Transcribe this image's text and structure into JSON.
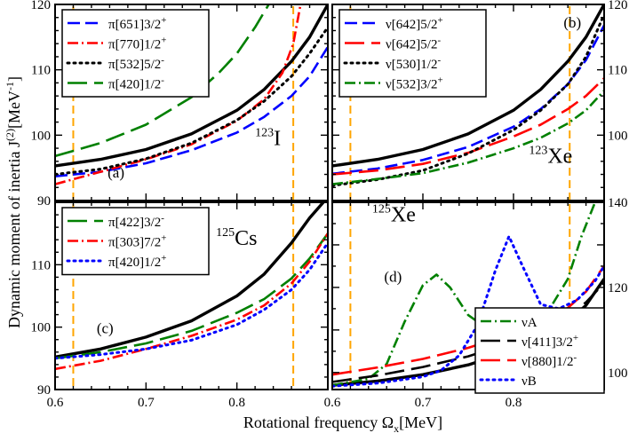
{
  "chart_data": [
    {
      "type": "line",
      "panel": "(a)",
      "nucleus": {
        "mass": "123",
        "symbol": "I"
      },
      "xlim": [
        0.6,
        0.9
      ],
      "ylim": [
        90,
        120
      ],
      "yticks": [
        90,
        100,
        110,
        120
      ],
      "ytick_side": "left",
      "xticks": [],
      "vlines": [
        0.62,
        0.862
      ],
      "legend_position": "top-left",
      "series": [
        {
          "name": "solid",
          "label": "",
          "color": "#000000",
          "dash": "solid",
          "x": [
            0.6,
            0.65,
            0.7,
            0.75,
            0.8,
            0.83,
            0.86,
            0.88,
            0.9
          ],
          "y": [
            95.3,
            96.3,
            97.8,
            100.2,
            103.8,
            107.0,
            111.3,
            115.0,
            120.0
          ]
        },
        {
          "name": "pi651",
          "label": "π[651]3/2⁺",
          "color": "#0000ff",
          "dash": "dash",
          "x": [
            0.6,
            0.65,
            0.7,
            0.75,
            0.8,
            0.83,
            0.86,
            0.88,
            0.9
          ],
          "y": [
            93.7,
            94.4,
            95.7,
            97.7,
            100.4,
            102.8,
            106.0,
            109.0,
            113.5
          ]
        },
        {
          "name": "pi770",
          "label": "π[770]1/2⁺",
          "color": "#ff0000",
          "dash": "dashdot",
          "x": [
            0.6,
            0.65,
            0.7,
            0.75,
            0.8,
            0.83,
            0.85,
            0.862,
            0.87
          ],
          "y": [
            92.5,
            94.4,
            96.3,
            98.6,
            102.2,
            105.5,
            109.5,
            114.0,
            120.0
          ]
        },
        {
          "name": "pi532",
          "label": "π[532]5/2⁻",
          "color": "#000000",
          "dash": "dot",
          "x": [
            0.6,
            0.65,
            0.7,
            0.75,
            0.8,
            0.83,
            0.86,
            0.88,
            0.9
          ],
          "y": [
            94.0,
            94.8,
            96.4,
            98.8,
            102.3,
            105.2,
            109.0,
            112.5,
            116.5
          ]
        },
        {
          "name": "pi420",
          "label": "π[420]1/2⁻",
          "color": "#008000",
          "dash": "longdash",
          "x": [
            0.6,
            0.65,
            0.7,
            0.75,
            0.78,
            0.8,
            0.82,
            0.835
          ],
          "y": [
            96.8,
            98.8,
            101.6,
            105.8,
            109.5,
            112.5,
            116.5,
            120.0
          ]
        }
      ]
    },
    {
      "type": "line",
      "panel": "(b)",
      "nucleus": {
        "mass": "123",
        "symbol": "Xe"
      },
      "xlim": [
        0.6,
        0.9
      ],
      "ylim": [
        90,
        120
      ],
      "yticks": [
        100,
        110,
        120
      ],
      "ytick_side": "right",
      "xticks": [],
      "vlines": [
        0.62,
        0.862
      ],
      "legend_position": "top-left",
      "series": [
        {
          "name": "solid",
          "label": "",
          "color": "#000000",
          "dash": "solid",
          "x": [
            0.6,
            0.65,
            0.7,
            0.75,
            0.8,
            0.83,
            0.86,
            0.88,
            0.9
          ],
          "y": [
            95.3,
            96.3,
            97.8,
            100.2,
            103.8,
            107.0,
            111.3,
            115.0,
            120.0
          ]
        },
        {
          "name": "nu642p",
          "label": "ν[642]5/2⁺",
          "color": "#0000ff",
          "dash": "dash",
          "x": [
            0.6,
            0.65,
            0.7,
            0.75,
            0.8,
            0.83,
            0.86,
            0.88,
            0.9
          ],
          "y": [
            94.1,
            94.9,
            96.2,
            98.2,
            101.3,
            104.0,
            107.8,
            111.5,
            116.8
          ]
        },
        {
          "name": "nu642m",
          "label": "ν[642]5/2⁻",
          "color": "#ff0000",
          "dash": "longdash",
          "x": [
            0.6,
            0.65,
            0.7,
            0.75,
            0.8,
            0.83,
            0.86,
            0.88,
            0.9
          ],
          "y": [
            94.0,
            94.6,
            95.6,
            97.3,
            99.8,
            101.6,
            104.0,
            106.0,
            108.7
          ]
        },
        {
          "name": "nu530",
          "label": "ν[530]1/2⁻",
          "color": "#000000",
          "dash": "dot",
          "x": [
            0.6,
            0.65,
            0.7,
            0.75,
            0.8,
            0.83,
            0.86,
            0.88,
            0.9
          ],
          "y": [
            92.3,
            93.2,
            94.6,
            97.2,
            100.8,
            103.8,
            107.8,
            112.0,
            118.5
          ]
        },
        {
          "name": "nu532",
          "label": "ν[532]3/2⁺",
          "color": "#008000",
          "dash": "dashdot",
          "x": [
            0.6,
            0.65,
            0.7,
            0.75,
            0.8,
            0.83,
            0.86,
            0.88,
            0.9
          ],
          "y": [
            92.5,
            93.3,
            94.2,
            95.8,
            98.0,
            99.6,
            101.8,
            103.8,
            106.8
          ]
        }
      ]
    },
    {
      "type": "line",
      "panel": "(c)",
      "nucleus": {
        "mass": "125",
        "symbol": "Cs"
      },
      "xlim": [
        0.6,
        0.9
      ],
      "ylim": [
        90,
        120
      ],
      "yticks": [
        90,
        100,
        110
      ],
      "ytick_side": "left",
      "xticks": [
        0.6,
        0.7,
        0.8
      ],
      "vlines": [
        0.62,
        0.862
      ],
      "legend_position": "top-left",
      "series": [
        {
          "name": "solid",
          "label": "",
          "color": "#000000",
          "dash": "solid",
          "x": [
            0.6,
            0.65,
            0.7,
            0.75,
            0.8,
            0.83,
            0.86,
            0.88,
            0.895
          ],
          "y": [
            95.2,
            96.5,
            98.4,
            101.0,
            105.0,
            108.5,
            113.5,
            117.5,
            120.0
          ]
        },
        {
          "name": "pi422",
          "label": "π[422]3/2⁻",
          "color": "#008000",
          "dash": "longdash",
          "x": [
            0.6,
            0.65,
            0.7,
            0.75,
            0.8,
            0.83,
            0.86,
            0.88,
            0.9
          ],
          "y": [
            95.0,
            96.0,
            97.4,
            99.4,
            102.3,
            104.5,
            107.8,
            111.0,
            115.0
          ]
        },
        {
          "name": "pi303",
          "label": "π[303]7/2⁺",
          "color": "#ff0000",
          "dash": "dashdot",
          "x": [
            0.6,
            0.65,
            0.7,
            0.75,
            0.8,
            0.83,
            0.86,
            0.88,
            0.9
          ],
          "y": [
            93.3,
            94.6,
            96.5,
            98.6,
            101.2,
            103.5,
            107.0,
            110.5,
            115.0
          ]
        },
        {
          "name": "pi420b",
          "label": "π[420]1/2⁺",
          "color": "#0000ff",
          "dash": "dot",
          "x": [
            0.6,
            0.65,
            0.7,
            0.75,
            0.8,
            0.83,
            0.86,
            0.88,
            0.9
          ],
          "y": [
            95.0,
            95.6,
            96.5,
            97.9,
            100.4,
            102.8,
            106.0,
            109.2,
            113.5
          ]
        }
      ]
    },
    {
      "type": "line",
      "panel": "(d)",
      "nucleus": {
        "mass": "125",
        "symbol": "Xe"
      },
      "xlim": [
        0.6,
        0.9
      ],
      "ylim": [
        96,
        140
      ],
      "yticks": [
        100,
        120,
        140
      ],
      "ytick_side": "right",
      "xticks": [
        0.6,
        0.7,
        0.8
      ],
      "vlines": [
        0.62,
        0.862
      ],
      "legend_position": "bottom-right",
      "series": [
        {
          "name": "solid",
          "label": "",
          "color": "#000000",
          "dash": "solid",
          "x": [
            0.6,
            0.65,
            0.7,
            0.75,
            0.8,
            0.83,
            0.86,
            0.88,
            0.9
          ],
          "y": [
            97.0,
            98.0,
            99.5,
            101.8,
            105.2,
            108.0,
            112.0,
            115.8,
            122.0
          ]
        },
        {
          "name": "nuA",
          "label": "νA",
          "color": "#008000",
          "dash": "dashdot",
          "x": [
            0.6,
            0.64,
            0.66,
            0.68,
            0.7,
            0.715,
            0.73,
            0.75,
            0.77,
            0.79,
            0.8,
            0.82,
            0.84,
            0.86,
            0.875,
            0.89
          ],
          "y": [
            97.0,
            98.5,
            102.0,
            112.0,
            120.5,
            123.0,
            120.0,
            113.5,
            110.5,
            110.3,
            110.6,
            112.0,
            115.0,
            122.0,
            132.0,
            140.0
          ]
        },
        {
          "name": "nu411",
          "label": "ν[411]3/2⁺",
          "color": "#000000",
          "dash": "longdash",
          "x": [
            0.6,
            0.65,
            0.7,
            0.75,
            0.8,
            0.83,
            0.86,
            0.88,
            0.9
          ],
          "y": [
            97.8,
            99.3,
            101.3,
            103.8,
            107.2,
            109.8,
            113.2,
            116.5,
            121.0
          ]
        },
        {
          "name": "nu880",
          "label": "ν[880]1/2⁻",
          "color": "#ff0000",
          "dash": "longdash",
          "x": [
            0.6,
            0.65,
            0.7,
            0.75,
            0.8,
            0.83,
            0.86,
            0.88,
            0.9
          ],
          "y": [
            99.5,
            101.2,
            103.2,
            105.8,
            109.2,
            111.8,
            115.2,
            119.0,
            125.0
          ]
        },
        {
          "name": "nuB",
          "label": "νB",
          "color": "#0000ff",
          "dash": "dot",
          "x": [
            0.6,
            0.65,
            0.7,
            0.72,
            0.74,
            0.76,
            0.78,
            0.795,
            0.81,
            0.83,
            0.85,
            0.87,
            0.89,
            0.9
          ],
          "y": [
            96.8,
            97.5,
            99.0,
            100.5,
            104.0,
            111.0,
            124.0,
            132.0,
            125.0,
            116.0,
            115.0,
            117.0,
            121.5,
            125.0
          ]
        }
      ]
    }
  ],
  "axes": {
    "xlabel": "Rotational frequency Ω",
    "xlabel_sub": "x",
    "xlabel_unit": "[MeV]",
    "ylabel": "Dynamic moment of inertia J",
    "ylabel_sup": "(2)",
    "ylabel_unit": "[MeV",
    "ylabel_unit_exp": "-1",
    "ylabel_unit_end": "]"
  },
  "colors": {
    "blue": "#0000ff",
    "red": "#ff0000",
    "green": "#008000",
    "black": "#000000",
    "vline": "#ffa500"
  }
}
